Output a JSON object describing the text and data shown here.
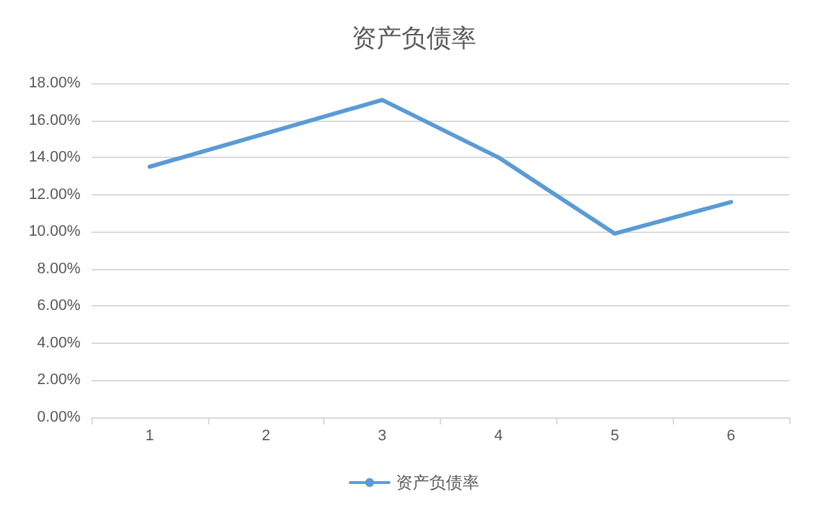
{
  "chart_data": {
    "type": "line",
    "title": "资产负债率",
    "categories": [
      "1",
      "2",
      "3",
      "4",
      "5",
      "6"
    ],
    "series": [
      {
        "name": "资产负债率",
        "color": "#5b9bd5",
        "values": [
          13.5,
          15.3,
          17.1,
          14.0,
          9.9,
          11.6
        ]
      }
    ],
    "ylim": [
      0,
      18
    ],
    "yticks": [
      {
        "value": 0,
        "label": "0.00%"
      },
      {
        "value": 2,
        "label": "2.00%"
      },
      {
        "value": 4,
        "label": "4.00%"
      },
      {
        "value": 6,
        "label": "6.00%"
      },
      {
        "value": 8,
        "label": "8.00%"
      },
      {
        "value": 10,
        "label": "10.00%"
      },
      {
        "value": 12,
        "label": "12.00%"
      },
      {
        "value": 14,
        "label": "14.00%"
      },
      {
        "value": 16,
        "label": "16.00%"
      },
      {
        "value": 18,
        "label": "18.00%"
      }
    ],
    "grid": "y",
    "legend": "bottom",
    "marker": "none",
    "line_style": "solid"
  }
}
